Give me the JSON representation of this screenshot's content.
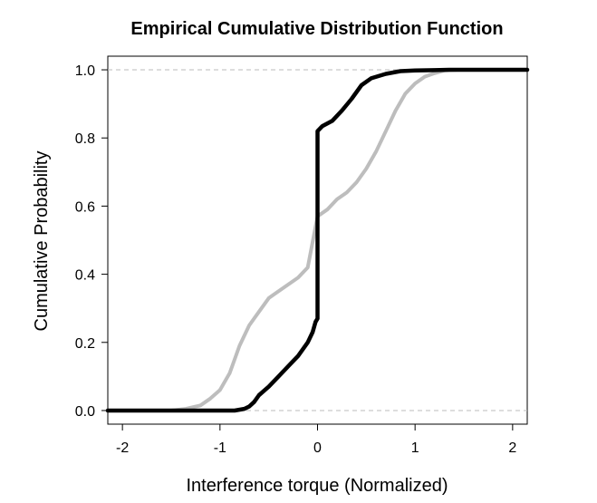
{
  "chart_data": {
    "type": "line",
    "title": "Empirical Cumulative Distribution Function",
    "xlabel": "Interference torque (Normalized)",
    "ylabel": "Cumulative Probability",
    "xlim": [
      -2.15,
      2.15
    ],
    "ylim": [
      -0.04,
      1.04
    ],
    "x_ticks": [
      -2,
      -1,
      0,
      1,
      2
    ],
    "x_tick_labels": [
      "-2",
      "-1",
      "0",
      "1",
      "2"
    ],
    "y_ticks": [
      0.0,
      0.2,
      0.4,
      0.6,
      0.8,
      1.0
    ],
    "y_tick_labels": [
      "0.0",
      "0.2",
      "0.4",
      "0.6",
      "0.8",
      "1.0"
    ],
    "reference_lines_y": [
      0.0,
      1.0
    ],
    "grid": false,
    "legend": "none",
    "series": [
      {
        "color": "#bdbdbd",
        "points": [
          [
            -2.15,
            0.0
          ],
          [
            -1.5,
            0.0
          ],
          [
            -1.35,
            0.005
          ],
          [
            -1.2,
            0.015
          ],
          [
            -1.1,
            0.035
          ],
          [
            -1.0,
            0.06
          ],
          [
            -0.9,
            0.11
          ],
          [
            -0.8,
            0.19
          ],
          [
            -0.7,
            0.25
          ],
          [
            -0.6,
            0.29
          ],
          [
            -0.5,
            0.33
          ],
          [
            -0.4,
            0.35
          ],
          [
            -0.3,
            0.37
          ],
          [
            -0.2,
            0.39
          ],
          [
            -0.1,
            0.42
          ],
          [
            0.0,
            0.57
          ],
          [
            0.1,
            0.59
          ],
          [
            0.2,
            0.62
          ],
          [
            0.3,
            0.64
          ],
          [
            0.4,
            0.67
          ],
          [
            0.5,
            0.71
          ],
          [
            0.6,
            0.76
          ],
          [
            0.7,
            0.82
          ],
          [
            0.8,
            0.88
          ],
          [
            0.9,
            0.93
          ],
          [
            1.0,
            0.96
          ],
          [
            1.1,
            0.98
          ],
          [
            1.2,
            0.99
          ],
          [
            1.3,
            0.998
          ],
          [
            1.45,
            1.0
          ],
          [
            2.15,
            1.0
          ]
        ]
      },
      {
        "color": "#000000",
        "points": [
          [
            -2.15,
            0.0
          ],
          [
            -0.85,
            0.0
          ],
          [
            -0.75,
            0.005
          ],
          [
            -0.7,
            0.012
          ],
          [
            -0.65,
            0.025
          ],
          [
            -0.6,
            0.045
          ],
          [
            -0.5,
            0.07
          ],
          [
            -0.4,
            0.1
          ],
          [
            -0.3,
            0.13
          ],
          [
            -0.2,
            0.16
          ],
          [
            -0.1,
            0.2
          ],
          [
            -0.05,
            0.23
          ],
          [
            -0.02,
            0.26
          ],
          [
            0.0,
            0.27
          ],
          [
            0.0,
            0.82
          ],
          [
            0.05,
            0.835
          ],
          [
            0.15,
            0.85
          ],
          [
            0.25,
            0.88
          ],
          [
            0.35,
            0.915
          ],
          [
            0.45,
            0.955
          ],
          [
            0.55,
            0.975
          ],
          [
            0.7,
            0.988
          ],
          [
            0.85,
            0.996
          ],
          [
            1.0,
            0.998
          ],
          [
            1.2,
            0.999
          ],
          [
            1.35,
            1.0
          ],
          [
            2.15,
            1.0
          ]
        ]
      }
    ]
  }
}
